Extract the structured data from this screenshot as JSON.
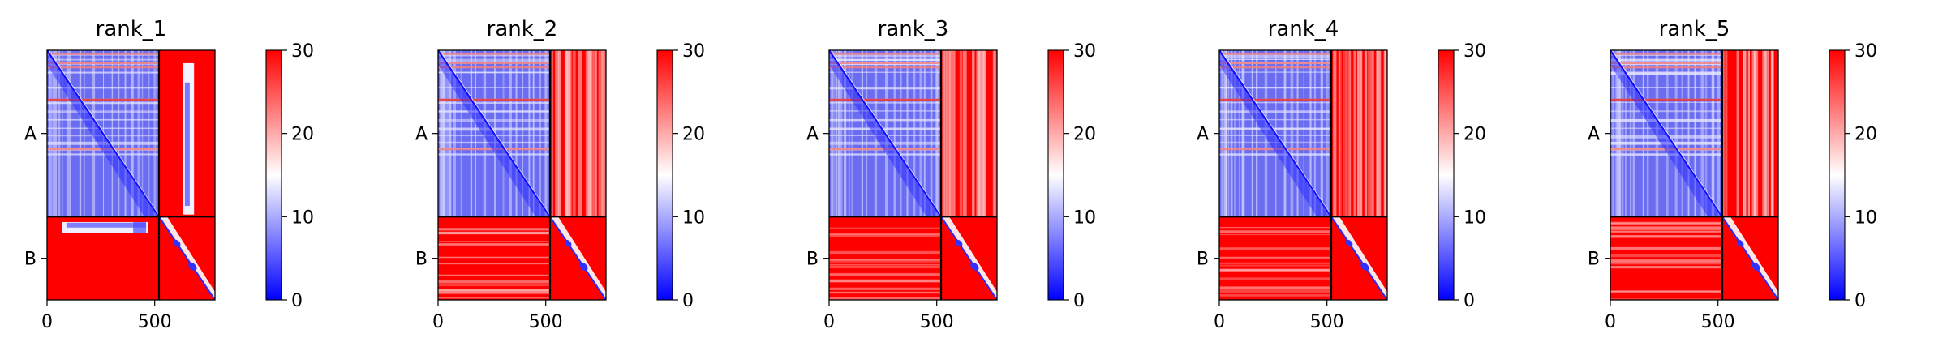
{
  "figure": {
    "colorbar": {
      "ticks": [
        0,
        10,
        20,
        30
      ],
      "colors": {
        "low": "#0000ff",
        "mid": "#ffffff",
        "high": "#ff0000"
      }
    },
    "chain_divider_residue": 520,
    "total_residues": 780,
    "x_ticks": [
      0,
      500
    ],
    "y_ticks": [
      "A",
      "B"
    ]
  },
  "chart_data": [
    {
      "type": "heatmap",
      "title": "rank_1",
      "colorbar_range": [
        0,
        30
      ],
      "x_range": [
        0,
        780
      ],
      "chains": [
        "A",
        "B"
      ],
      "variant": 0
    },
    {
      "type": "heatmap",
      "title": "rank_2",
      "colorbar_range": [
        0,
        30
      ],
      "x_range": [
        0,
        780
      ],
      "chains": [
        "A",
        "B"
      ],
      "variant": 1
    },
    {
      "type": "heatmap",
      "title": "rank_3",
      "colorbar_range": [
        0,
        30
      ],
      "x_range": [
        0,
        780
      ],
      "chains": [
        "A",
        "B"
      ],
      "variant": 1
    },
    {
      "type": "heatmap",
      "title": "rank_4",
      "colorbar_range": [
        0,
        30
      ],
      "x_range": [
        0,
        780
      ],
      "chains": [
        "A",
        "B"
      ],
      "variant": 1
    },
    {
      "type": "heatmap",
      "title": "rank_5",
      "colorbar_range": [
        0,
        30
      ],
      "x_range": [
        0,
        780
      ],
      "chains": [
        "A",
        "B"
      ],
      "variant": 1
    }
  ]
}
